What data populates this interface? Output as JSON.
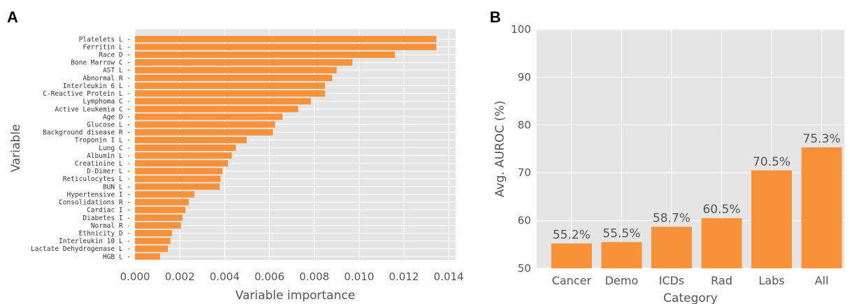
{
  "chart_data": [
    {
      "panel": "A",
      "type": "bar",
      "orientation": "horizontal",
      "xlabel": "Variable importance",
      "ylabel": "Variable",
      "xlim": [
        0,
        0.0143
      ],
      "xticks": [
        "0.000",
        "0.002",
        "0.004",
        "0.006",
        "0.008",
        "0.010",
        "0.012",
        "0.014"
      ],
      "color": "#f7923a",
      "background": "#e5e5e5",
      "grid": true,
      "categories": [
        "Platelets L",
        "Ferritin L",
        "Race D",
        "Bone Marrow C",
        "AST L",
        "Abnormal R",
        "Interleukin 6 L",
        "C-Reactive Protein L",
        "Lymphoma C",
        "Active Leukemia C",
        "Age D",
        "Glucose L",
        "Background disease R",
        "Troponin I L",
        "Lung C",
        "Albumin L",
        "Creatinine L",
        "D-Dimer L",
        "Reticulocytes L",
        "BUN L",
        "Hypertensive I",
        "Consolidations R",
        "Cardiac I",
        "Diabetes I",
        "Normal R",
        "Ethnicity D",
        "Interleukin 10 L",
        "Lactate Dehydrogenase L",
        "HGB L"
      ],
      "values": [
        0.01345,
        0.01345,
        0.0116,
        0.0097,
        0.009,
        0.0088,
        0.00848,
        0.00848,
        0.00785,
        0.00728,
        0.00658,
        0.00625,
        0.00615,
        0.00498,
        0.0045,
        0.00432,
        0.00415,
        0.0039,
        0.00382,
        0.00378,
        0.00265,
        0.0024,
        0.00225,
        0.00212,
        0.00205,
        0.00165,
        0.00158,
        0.00147,
        0.00112
      ]
    },
    {
      "panel": "B",
      "type": "bar",
      "orientation": "vertical",
      "xlabel": "Category",
      "ylabel": "Avg. AUROC (%)",
      "ylim": [
        50,
        100
      ],
      "yticks": [
        "50",
        "60",
        "70",
        "80",
        "90",
        "100"
      ],
      "color": "#f7923a",
      "background": "#e5e5e5",
      "grid": true,
      "categories": [
        "Cancer",
        "Demo",
        "ICDs",
        "Rad",
        "Labs",
        "All"
      ],
      "values": [
        55.2,
        55.5,
        58.7,
        60.5,
        70.5,
        75.3
      ],
      "data_labels": [
        "55.2%",
        "55.5%",
        "58.7%",
        "60.5%",
        "70.5%",
        "75.3%"
      ]
    }
  ]
}
